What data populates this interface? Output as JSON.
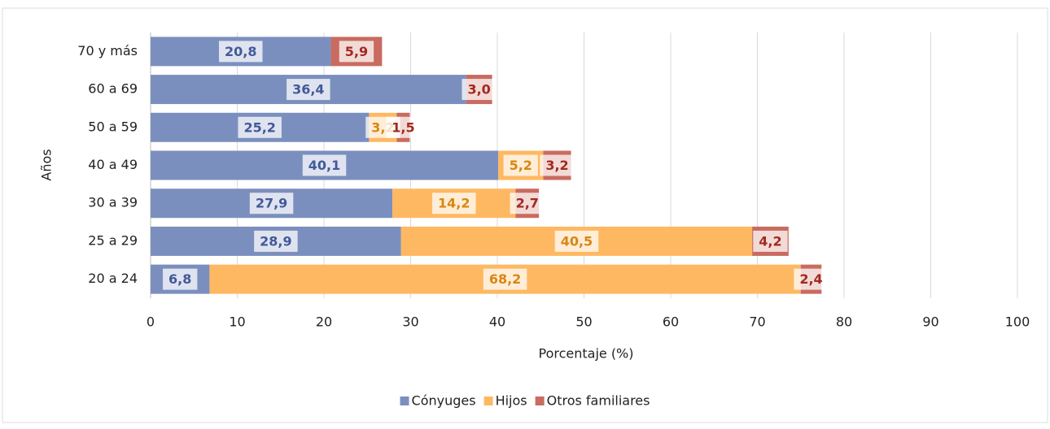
{
  "chart_data": {
    "type": "stacked-bar-horizontal",
    "xlabel": "Porcentaje (%)",
    "ylabel": "Años",
    "categories": [
      "70 y más",
      "60 a 69",
      "50 a 59",
      "40 a 49",
      "30 a 39",
      "25 a 29",
      "20 a 24"
    ],
    "series": [
      {
        "name": "Cónyuges",
        "color": "#7b8fbf",
        "label_color": "#42599a",
        "values": [
          20.8,
          36.4,
          25.2,
          40.1,
          27.9,
          28.9,
          6.8
        ],
        "value_labels": [
          "20,8",
          "36,4",
          "25,2",
          "40,1",
          "27,9",
          "28,9",
          "6,8"
        ]
      },
      {
        "name": "Hijos",
        "color": "#ffb862",
        "label_color": "#d9860f",
        "values": [
          null,
          null,
          3.2,
          5.2,
          14.2,
          40.5,
          68.2
        ],
        "value_labels": [
          null,
          null,
          "3,2",
          "5,2",
          "14,2",
          "40,5",
          "68,2"
        ]
      },
      {
        "name": "Otros familiares",
        "color": "#c96b60",
        "label_color": "#a3291f",
        "values": [
          5.9,
          3.0,
          1.5,
          3.2,
          2.7,
          4.2,
          2.4
        ],
        "value_labels": [
          "5,9",
          "3,0",
          "1,5",
          "3,2",
          "2,7",
          "4,2",
          "2,4"
        ]
      }
    ],
    "xlim": [
      0,
      100
    ],
    "xticks": [
      0,
      10,
      20,
      30,
      40,
      50,
      60,
      70,
      80,
      90,
      100
    ],
    "grid": true,
    "legend": "bottom"
  }
}
